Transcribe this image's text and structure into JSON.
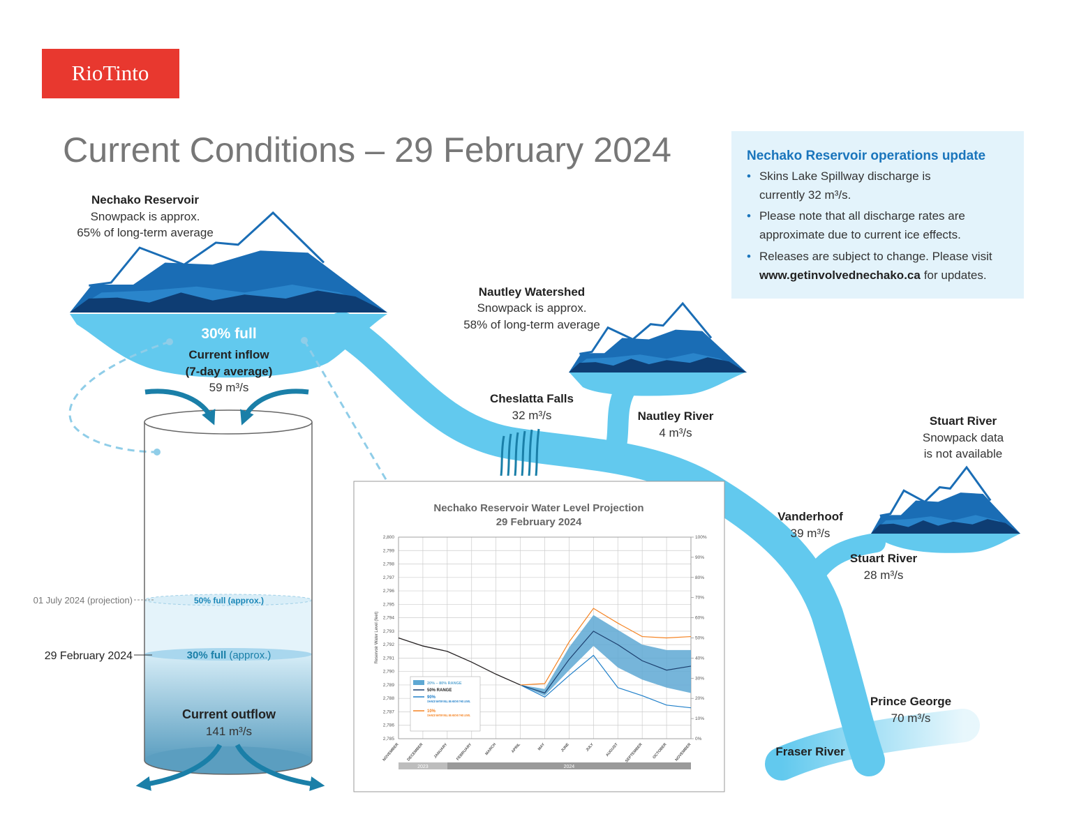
{
  "logo": "RioTinto",
  "title": "Current Conditions – 29 February 2024",
  "update": {
    "heading": "Nechako Reservoir operations update",
    "bullets": [
      [
        "Skins Lake Spillway discharge is",
        "currently 32 m³/s."
      ],
      [
        "Please note that all discharge rates are",
        "approximate due to current ice effects."
      ],
      [
        "Releases are subject to change. Please visit",
        "www.getinvolvednechako.ca",
        "for updates."
      ]
    ]
  },
  "nechako_reservoir": {
    "name": "Nechako Reservoir",
    "lines": [
      "Snowpack is approx.",
      "65% of long-term average"
    ],
    "fill": "30% full",
    "inflow": [
      "Current inflow",
      "(7-day average)",
      "59 m³/s"
    ]
  },
  "nautley_watershed": {
    "name": "Nautley Watershed",
    "lines": [
      "Snowpack is approx.",
      "58% of long-term average"
    ]
  },
  "stuart_watershed": {
    "name": "Stuart River",
    "lines": [
      "Snowpack data",
      "is not available"
    ]
  },
  "flows": [
    {
      "name": "Cheslatta Falls",
      "rate": "32 m³/s"
    },
    {
      "name": "Nautley River",
      "rate": "4 m³/s"
    },
    {
      "name": "Vanderhoof",
      "rate": "39 m³/s"
    },
    {
      "name": "Stuart River",
      "rate": "28 m³/s"
    },
    {
      "name": "Prince George",
      "rate": "70 m³/s"
    },
    {
      "name": "Fraser River"
    }
  ],
  "cylinder": {
    "projection_date": "01 July 2024 (projection)",
    "projection_level": "50% full (approx.)",
    "current_date": "29 February 2024",
    "current_level": "30% full",
    "current_note": "(approx.)",
    "outflow": [
      "Current outflow",
      "141 m³/s"
    ]
  },
  "chart_data": {
    "type": "line",
    "title": "Nechako Reservoir Water Level Projection",
    "subtitle": "29 February 2024",
    "ylabel": "Reservoir Water Level (feet)",
    "categories": [
      "NOVEMBER",
      "DECEMBER",
      "JANUARY",
      "FEBRUARY",
      "MARCH",
      "APRIL",
      "MAY",
      "JUNE",
      "JULY",
      "AUGUST",
      "SEPTEMBER",
      "OCTOBER",
      "NOVEMBER"
    ],
    "year_labels": [
      "2023",
      "2024"
    ],
    "grid": true,
    "ylim": [
      2785,
      2800
    ],
    "yticks": [
      {
        "value": 2785,
        "label": "2,785"
      },
      {
        "value": 2786,
        "label": "2,786"
      },
      {
        "value": 2787,
        "label": "2,787"
      },
      {
        "value": 2788,
        "label": "2,788"
      },
      {
        "value": 2789,
        "label": "2,789"
      },
      {
        "value": 2790,
        "label": "2,790"
      },
      {
        "value": 2791,
        "label": "2,791"
      },
      {
        "value": 2792,
        "label": "2,792"
      },
      {
        "value": 2793,
        "label": "2,793"
      },
      {
        "value": 2794,
        "label": "2,794"
      },
      {
        "value": 2795,
        "label": "2,795"
      },
      {
        "value": 2796,
        "label": "2,796"
      },
      {
        "value": 2797,
        "label": "2,797"
      },
      {
        "value": 2798,
        "label": "2,798"
      },
      {
        "value": 2799,
        "label": "2,799"
      },
      {
        "value": 2800,
        "label": "2,800"
      }
    ],
    "y2lim": [
      0,
      100
    ],
    "y2ticks": [
      {
        "value": 0,
        "label": "0%"
      },
      {
        "value": 10,
        "label": "10%"
      },
      {
        "value": 20,
        "label": "20%"
      },
      {
        "value": 30,
        "label": "30%"
      },
      {
        "value": 40,
        "label": "40%"
      },
      {
        "value": 50,
        "label": "50%"
      },
      {
        "value": 60,
        "label": "60%"
      },
      {
        "value": 70,
        "label": "70%"
      },
      {
        "value": 80,
        "label": "80%"
      },
      {
        "value": 90,
        "label": "90%"
      },
      {
        "value": 100,
        "label": "100%"
      }
    ],
    "band": {
      "name": "20% – 80% RANGE",
      "color": "#5ea8d3",
      "low": [
        null,
        null,
        null,
        null,
        null,
        2789.0,
        2788.2,
        2790.1,
        2791.9,
        2790.3,
        2789.4,
        2788.8,
        2788.4
      ],
      "high": [
        null,
        null,
        null,
        null,
        null,
        2789.0,
        2788.7,
        2791.8,
        2794.2,
        2793.1,
        2792.0,
        2791.6,
        2791.6
      ]
    },
    "series": [
      {
        "color": "#231f20",
        "values": [
          2792.5,
          2791.9,
          2791.5,
          2790.7,
          2789.8,
          2789.0,
          null,
          null,
          null,
          null,
          null,
          null,
          null
        ]
      },
      {
        "name": "50% RANGE",
        "color": "#1c3f6e",
        "values": [
          null,
          null,
          null,
          null,
          null,
          2789.0,
          2788.4,
          2790.9,
          2793.0,
          2792.0,
          2790.8,
          2790.1,
          2790.4
        ]
      },
      {
        "name": "90%",
        "note": "CHANCE WATER WILL BE ABOVE THIS LEVEL",
        "color": "#1f7fc9",
        "values": [
          null,
          null,
          null,
          null,
          null,
          2789.0,
          2788.1,
          2789.7,
          2791.2,
          2788.8,
          2788.2,
          2787.5,
          2787.3
        ]
      },
      {
        "name": "10%",
        "note": "CHANCE WATER WILL BE ABOVE THIS LEVEL",
        "color": "#f58220",
        "values": [
          null,
          null,
          null,
          null,
          null,
          2789.0,
          2789.1,
          2792.2,
          2794.7,
          2793.6,
          2792.6,
          2792.5,
          2792.6
        ]
      }
    ]
  }
}
